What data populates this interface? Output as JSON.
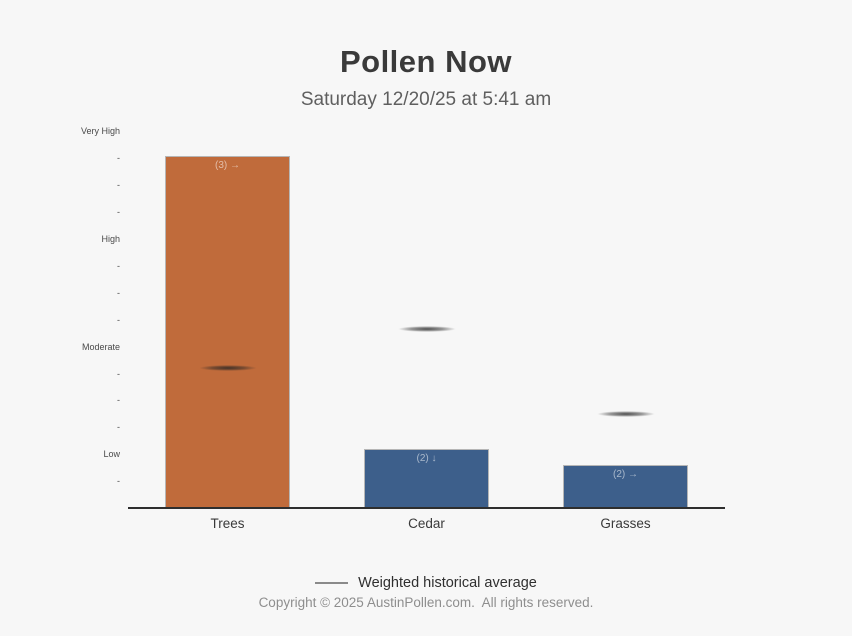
{
  "header": {
    "title": "Pollen Now",
    "subtitle": "Saturday 12/20/25 at 5:41 am"
  },
  "chart_data": {
    "type": "bar",
    "title": "Pollen Now",
    "subtitle": "Saturday 12/20/25 at 5:41 am",
    "categories": [
      "Trees",
      "Cedar",
      "Grasses"
    ],
    "values": [
      13.1,
      2.2,
      1.6
    ],
    "bar_labels": [
      "(3) →",
      "(2) ↓",
      "(2) →"
    ],
    "bar_colors": [
      "#c06b3b",
      "#3d5f8b",
      "#3d5f8b"
    ],
    "historical_average": [
      5.2,
      6.65,
      3.5
    ],
    "historical_average_marker": "dark lens-shaped dash centered on each category",
    "ylim": [
      0,
      14.35
    ],
    "yticks": [
      {
        "value": 1,
        "label": "-"
      },
      {
        "value": 2,
        "label": "Low"
      },
      {
        "value": 3,
        "label": "-"
      },
      {
        "value": 4,
        "label": "-"
      },
      {
        "value": 5,
        "label": "-"
      },
      {
        "value": 6,
        "label": "Moderate"
      },
      {
        "value": 7,
        "label": "-"
      },
      {
        "value": 8,
        "label": "-"
      },
      {
        "value": 9,
        "label": "-"
      },
      {
        "value": 10,
        "label": "High"
      },
      {
        "value": 11,
        "label": "-"
      },
      {
        "value": 12,
        "label": "-"
      },
      {
        "value": 13,
        "label": "-"
      },
      {
        "value": 14,
        "label": "Very High"
      }
    ],
    "xlabel": "",
    "ylabel": "",
    "grid": false,
    "legend_position": "bottom",
    "legend_label": "Weighted historical average"
  },
  "legend": {
    "label": "Weighted historical average"
  },
  "footer": {
    "copyright": "Copyright © 2025 AustinPollen.com.  All rights reserved."
  }
}
